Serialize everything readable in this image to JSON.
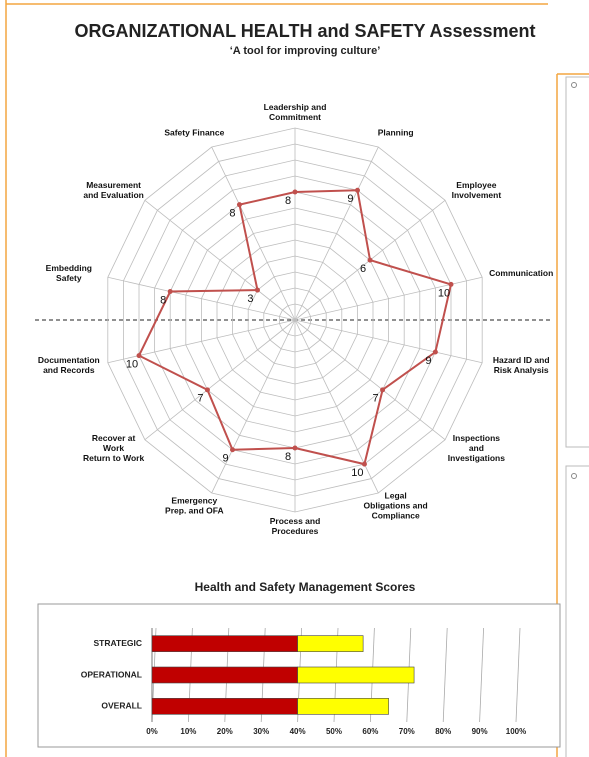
{
  "chart_data": [
    {
      "type": "radar",
      "title": "ORGANIZATIONAL HEALTH and SAFETY Assessment",
      "subtitle": "‘A tool for improving culture’",
      "categories": [
        "Leadership and\nCommitment",
        "Planning",
        "Employee\nInvolvement",
        "Communication",
        "Hazard ID and\nRisk Analysis",
        "Inspections\nand\nInvestigations",
        "Legal\nObligations and\nCompliance",
        "Process and\nProcedures",
        "Emergency\nPrep. and OFA",
        "Recover at\nWork\nReturn to Work",
        "Documentation\nand Records",
        "Embedding\nSafety",
        "Measurement\nand Evaluation",
        "Safety Finance"
      ],
      "values": [
        8,
        9,
        6,
        10,
        9,
        7,
        10,
        8,
        9,
        7,
        10,
        8,
        3,
        8
      ],
      "color": "#c0504d",
      "rlim": [
        0,
        12
      ],
      "rticks": [
        1,
        2,
        3,
        4,
        5,
        6,
        7,
        8,
        9,
        10,
        11,
        12
      ]
    },
    {
      "type": "bar",
      "orientation": "horizontal",
      "stacked": true,
      "title": "Health and Safety Management Scores",
      "categories": [
        "STRATEGIC",
        "OPERATIONAL",
        "OVERALL"
      ],
      "series": [
        {
          "color": "#c00000",
          "values": [
            40,
            40,
            40
          ]
        },
        {
          "color": "#ffff00",
          "values": [
            18,
            32,
            25
          ]
        }
      ],
      "xlim": [
        0,
        100
      ],
      "xticks": [
        {
          "value": 0,
          "label": "0%"
        },
        {
          "value": 10,
          "label": "10%"
        },
        {
          "value": 20,
          "label": "20%"
        },
        {
          "value": 30,
          "label": "30%"
        },
        {
          "value": 40,
          "label": "40%"
        },
        {
          "value": 50,
          "label": "50%"
        },
        {
          "value": 60,
          "label": "60%"
        },
        {
          "value": 70,
          "label": "70%"
        },
        {
          "value": 80,
          "label": "80%"
        },
        {
          "value": 90,
          "label": "90%"
        },
        {
          "value": 100,
          "label": "100%"
        }
      ]
    }
  ]
}
